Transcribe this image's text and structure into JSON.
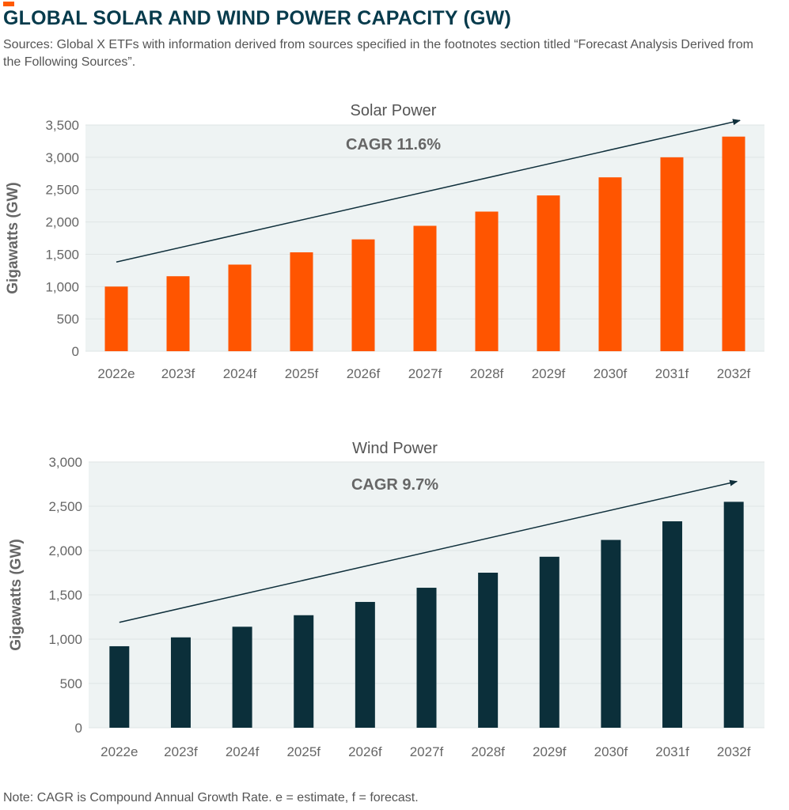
{
  "header": {
    "title": "GLOBAL SOLAR AND WIND POWER CAPACITY (GW)",
    "sources": "Sources: Global X ETFs with information derived from sources specified in the footnotes section titled “Forecast Analysis Derived from the Following Sources”."
  },
  "colors": {
    "accent": "#ff5a00",
    "solar_bar": "#ff5500",
    "wind_bar": "#0b2f3a",
    "plot_bg": "#eef3f3",
    "trend_arrow": "#0f2f3b"
  },
  "chart_data": [
    {
      "type": "bar",
      "title": "Solar Power",
      "annotation": "CAGR 11.6%",
      "xlabel": "",
      "ylabel": "Gigawatts (GW)",
      "ylim": [
        0,
        3500
      ],
      "yticks": [
        0,
        500,
        1000,
        1500,
        2000,
        2500,
        3000,
        3500
      ],
      "ytick_labels": [
        "0",
        "500",
        "1,000",
        "1,500",
        "2,000",
        "2,500",
        "3,000",
        "3,500"
      ],
      "categories": [
        "2022e",
        "2023f",
        "2024f",
        "2025f",
        "2026f",
        "2027f",
        "2028f",
        "2029f",
        "2030f",
        "2031f",
        "2032f"
      ],
      "values": [
        1000,
        1160,
        1340,
        1530,
        1730,
        1940,
        2160,
        2410,
        2690,
        3000,
        3320
      ],
      "trend_line": {
        "from": 1380,
        "to": 3570
      },
      "grid": true,
      "legend": "none"
    },
    {
      "type": "bar",
      "title": "Wind Power",
      "annotation": "CAGR 9.7%",
      "xlabel": "",
      "ylabel": "Gigawatts (GW)",
      "ylim": [
        0,
        3000
      ],
      "yticks": [
        0,
        500,
        1000,
        1500,
        2000,
        2500,
        3000
      ],
      "ytick_labels": [
        "0",
        "500",
        "1,000",
        "1,500",
        "2,000",
        "2,500",
        "3,000"
      ],
      "categories": [
        "2022e",
        "2023f",
        "2024f",
        "2025f",
        "2026f",
        "2027f",
        "2028f",
        "2029f",
        "2030f",
        "2031f",
        "2032f"
      ],
      "values": [
        920,
        1020,
        1140,
        1270,
        1420,
        1580,
        1750,
        1930,
        2120,
        2330,
        2550
      ],
      "trend_line": {
        "from": 1190,
        "to": 2780
      },
      "grid": true,
      "legend": "none"
    }
  ],
  "footer": {
    "note": "Note: CAGR is Compound Annual Growth Rate. e = estimate, f = forecast."
  }
}
